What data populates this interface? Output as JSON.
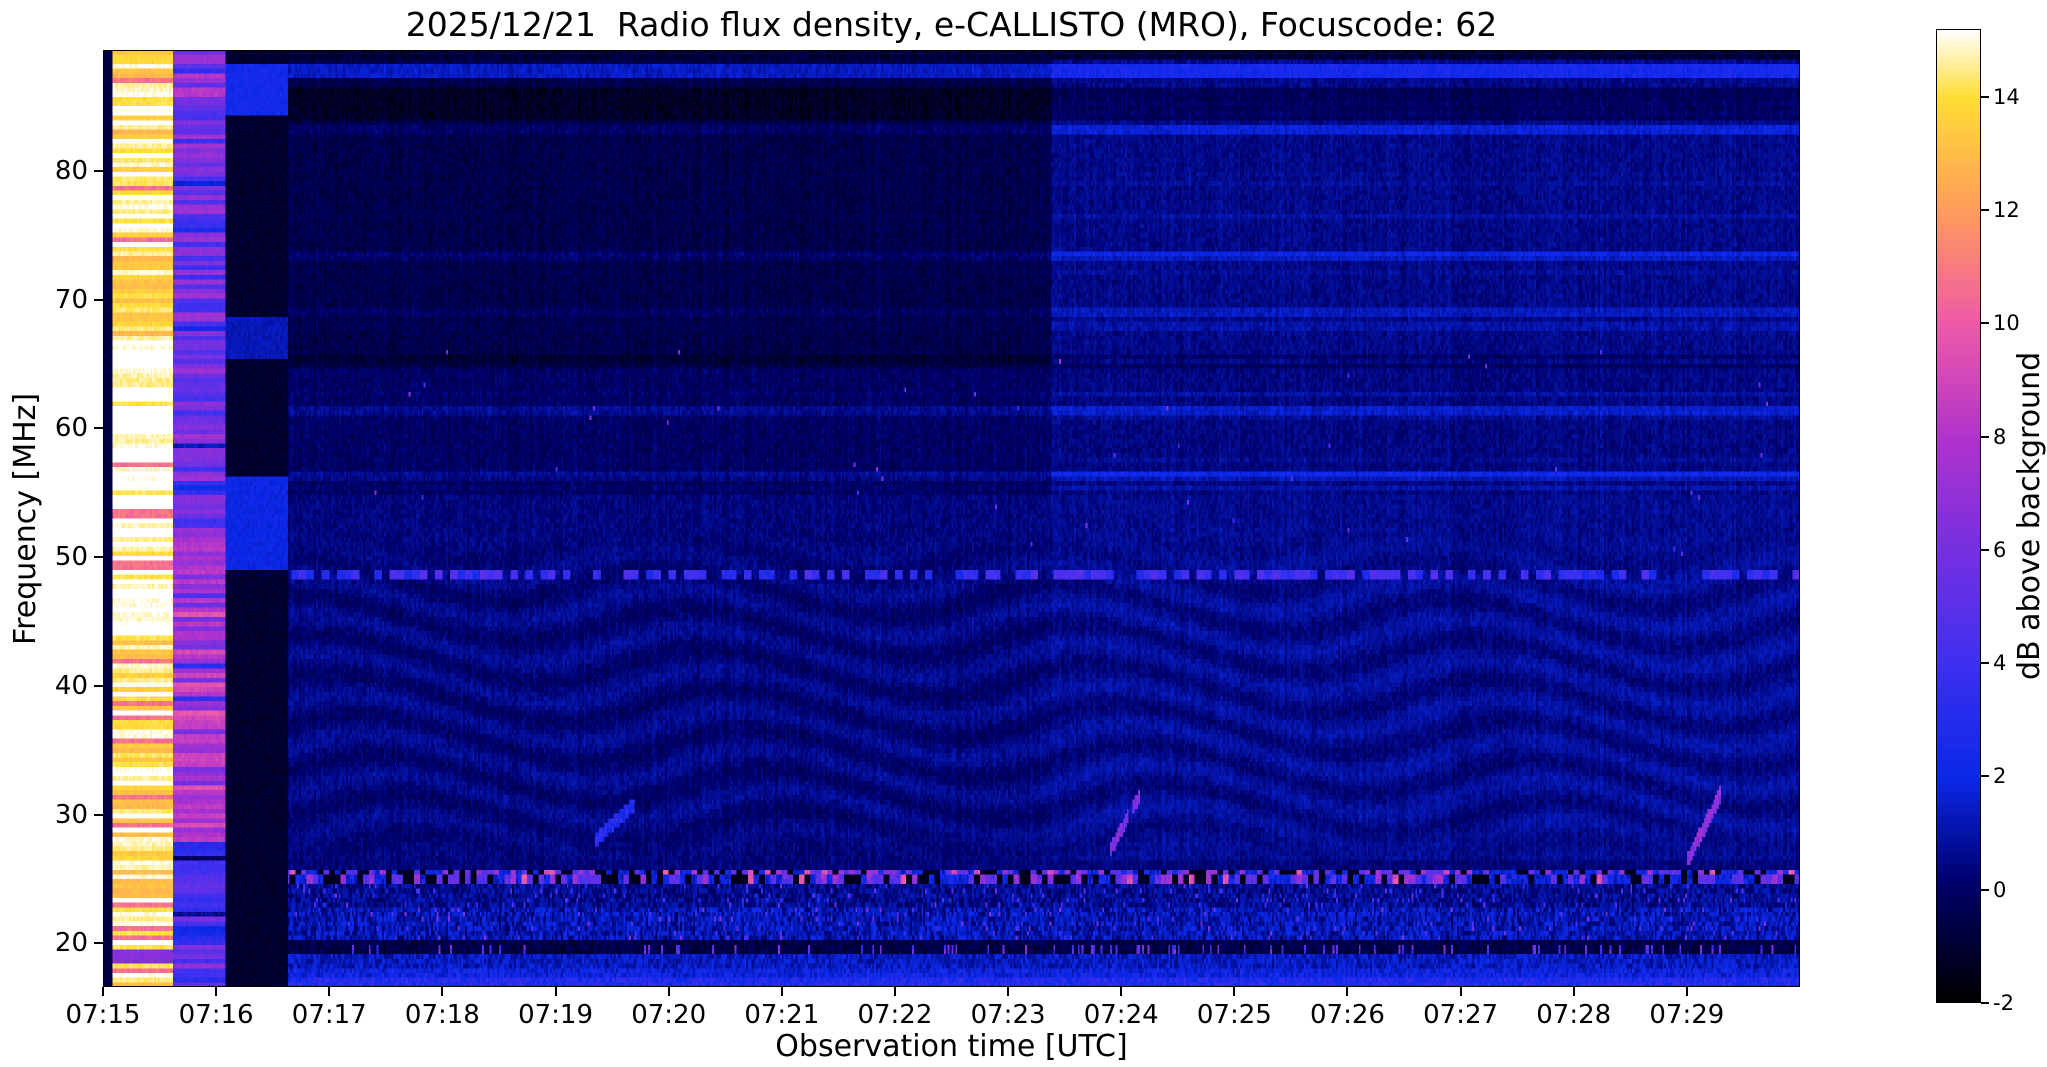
{
  "title": "2025/12/21  Radio flux density, e-CALLISTO (MRO), Focuscode: 62",
  "x_axis": {
    "label": "Observation time [UTC]",
    "tick_labels": [
      "07:15",
      "07:16",
      "07:17",
      "07:18",
      "07:19",
      "07:20",
      "07:21",
      "07:22",
      "07:23",
      "07:24",
      "07:25",
      "07:26",
      "07:27",
      "07:28",
      "07:29"
    ],
    "tick_minutes": [
      15,
      16,
      17,
      18,
      19,
      20,
      21,
      22,
      23,
      24,
      25,
      26,
      27,
      28,
      29
    ]
  },
  "y_axis": {
    "label": "Frequency [MHz]",
    "tick_values": [
      20,
      30,
      40,
      50,
      60,
      70,
      80
    ]
  },
  "colorbar": {
    "label": "dB above background",
    "tick_values": [
      -2,
      0,
      2,
      4,
      6,
      8,
      10,
      12,
      14
    ],
    "value_min": -2,
    "value_max": 15.2
  },
  "colors": {
    "background": "#ffffff",
    "axis": "#000000",
    "colormap_stops": [
      [
        0.0,
        "#000000"
      ],
      [
        0.12,
        "#00006a"
      ],
      [
        0.23,
        "#0a28e8"
      ],
      [
        0.35,
        "#4030f0"
      ],
      [
        0.47,
        "#7830e0"
      ],
      [
        0.58,
        "#b233cc"
      ],
      [
        0.7,
        "#ef5ca8"
      ],
      [
        0.81,
        "#ff9b5e"
      ],
      [
        0.93,
        "#ffdf35"
      ],
      [
        1.0,
        "#ffffff"
      ]
    ]
  },
  "chart_data": {
    "type": "heatmap",
    "title": "2025/12/21  Radio flux density, e-CALLISTO (MRO), Focuscode: 62",
    "instrument": "e-CALLISTO (MRO)",
    "focuscode": 62,
    "date": "2025/12/21",
    "time_start_utc": "07:15",
    "time_end_utc": "07:30",
    "x_range_minutes": [
      15,
      30
    ],
    "freq_range_mhz": [
      16.6,
      89.4
    ],
    "value_range_db": [
      -2,
      15.2
    ],
    "grid": {
      "cols": 900,
      "rows": 200
    },
    "split_t": 23.38,
    "background_levels_db": {
      "left_above_65mhz": -0.55,
      "left_55_65mhz": -0.1,
      "left_26_55mhz": 0.32,
      "right_above_65mhz": 0.5,
      "right_55_65mhz": 0.4,
      "right_26_55mhz": 0.6,
      "below_26mhz": 0.25
    },
    "cal_bands": [
      {
        "t0": 15.08,
        "t1": 15.62,
        "base": 12.4,
        "row_amp": 3.0,
        "desc": "saturated white/yellow calibration band, whitest 45-67 MHz"
      },
      {
        "t0": 15.62,
        "t1": 16.08,
        "base": 5.2,
        "row_amp": 4.0,
        "desc": "magenta/pink band, brightest 28-52 MHz, scattered blue rows"
      },
      {
        "t0": 16.08,
        "t1": 16.64,
        "base": -1.35,
        "row_amp": 0.5,
        "desc": "dark band with blue strips at 84-88, 65-69 and 49-56 MHz"
      }
    ],
    "h_lines": [
      {
        "f": 87.8,
        "hw": 0.55,
        "al": 1.9,
        "ar": 1.9
      },
      {
        "f": 83.3,
        "hw": 0.35,
        "al": 0.5,
        "ar": 1.2
      },
      {
        "f": 73.5,
        "hw": 0.4,
        "al": 0.5,
        "ar": 0.9
      },
      {
        "f": 69.0,
        "hw": 0.35,
        "al": 0.4,
        "ar": 0.8
      },
      {
        "f": 61.4,
        "hw": 0.4,
        "al": 0.7,
        "ar": 1.1
      },
      {
        "f": 56.4,
        "hw": 0.35,
        "al": 0.5,
        "ar": 0.8
      }
    ],
    "dark_bands": [
      {
        "f0": 83.9,
        "f1": 86.6,
        "amp": -0.75
      },
      {
        "f0": 64.8,
        "f1": 65.6,
        "amp": -0.5
      }
    ],
    "dashed_line": {
      "f": 48.6,
      "hw": 0.45,
      "desc": "bright dashed interference line across full width"
    },
    "rfi_band": {
      "f0": 24.45,
      "f1": 25.7,
      "desc": "strong colorful dashed RFI band at ~25 MHz"
    },
    "bottom_structure": {
      "speckle_22_24mhz": true,
      "dark_band_19_20mhz": -0.85,
      "bright_dot_row_mhz": 19.5,
      "bright_bottom_line_mhz": 17.0
    },
    "bursts": [
      {
        "t0": 19.35,
        "f0": 28.0,
        "slope": 8,
        "len": 0.35,
        "amp": 2.4,
        "desc": "very faint drifting feature ~07:19"
      },
      {
        "t0": 23.9,
        "f0": 27.2,
        "slope": 16,
        "len": 0.28,
        "amp": 5.6,
        "desc": "pink drifting burst ~07:24, 27-32 MHz"
      },
      {
        "t0": 29.0,
        "f0": 26.3,
        "slope": 18,
        "len": 0.35,
        "amp": 6.4,
        "desc": "pink drifting burst ~07:29, 26-32 MHz"
      },
      {
        "t0": 29.15,
        "f0": 28.8,
        "slope": 18,
        "len": 0.25,
        "amp": 5.4,
        "desc": "parallel streak of 07:29 burst"
      }
    ]
  }
}
